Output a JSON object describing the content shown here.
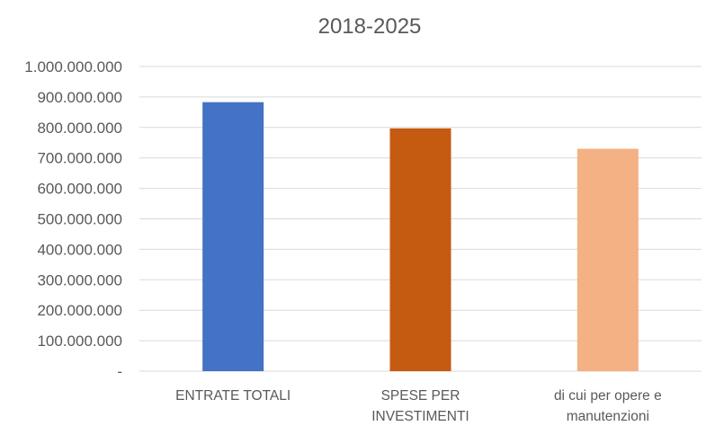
{
  "chart_data": {
    "type": "bar",
    "title": "2018-2025",
    "xlabel": "",
    "ylabel": "",
    "ylim": [
      0,
      1000000000
    ],
    "yticks": [
      {
        "value": 0,
        "label": "-"
      },
      {
        "value": 100000000,
        "label": "100.000.000"
      },
      {
        "value": 200000000,
        "label": "200.000.000"
      },
      {
        "value": 300000000,
        "label": "300.000.000"
      },
      {
        "value": 400000000,
        "label": "400.000.000"
      },
      {
        "value": 500000000,
        "label": "500.000.000"
      },
      {
        "value": 600000000,
        "label": "600.000.000"
      },
      {
        "value": 700000000,
        "label": "700.000.000"
      },
      {
        "value": 800000000,
        "label": "800.000.000"
      },
      {
        "value": 900000000,
        "label": "900.000.000"
      },
      {
        "value": 1000000000,
        "label": "1.000.000.000"
      }
    ],
    "categories": [
      [
        "ENTRATE TOTALI"
      ],
      [
        "SPESE PER",
        "INVESTIMENTI"
      ],
      [
        "di cui per opere e",
        "manutenzioni"
      ]
    ],
    "values": [
      883000000,
      797000000,
      730000000
    ],
    "colors": [
      "#4472C4",
      "#C55A11",
      "#F4B183"
    ],
    "grid": true,
    "legend": "none"
  }
}
